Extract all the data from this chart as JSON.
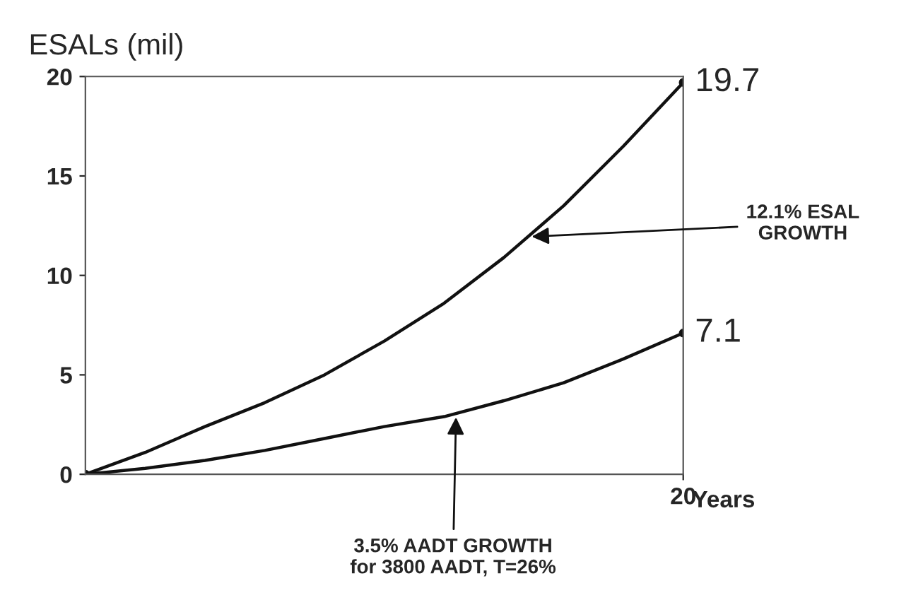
{
  "chart_data": {
    "type": "line",
    "ylabel": "ESALs (mil)",
    "xlabel": "Years",
    "categories": [
      null,
      null,
      null,
      null,
      null,
      null,
      null,
      null,
      null,
      null,
      "20"
    ],
    "series": [
      {
        "color": "#111111",
        "values": [
          0,
          1.1,
          2.4,
          3.6,
          5.0,
          6.7,
          8.6,
          10.9,
          13.5,
          16.5,
          19.7
        ],
        "value_labels": [
          null,
          null,
          null,
          null,
          null,
          null,
          null,
          null,
          null,
          null,
          "19.7"
        ]
      },
      {
        "color": "#111111",
        "values": [
          0,
          0.3,
          0.7,
          1.2,
          1.8,
          2.4,
          2.9,
          3.7,
          4.6,
          5.8,
          7.1
        ],
        "value_labels": [
          null,
          null,
          null,
          null,
          null,
          null,
          null,
          null,
          null,
          null,
          "7.1"
        ]
      }
    ],
    "ylim": [
      0,
      20
    ],
    "yticks": [
      0,
      5,
      10,
      15,
      20
    ],
    "grid": false,
    "legend": false,
    "annotations": [
      {
        "text": "12.1% ESAL\nGROWTH"
      },
      {
        "text": "3.5% AADT GROWTH\nfor 3800 AADT, T=26%"
      }
    ]
  }
}
